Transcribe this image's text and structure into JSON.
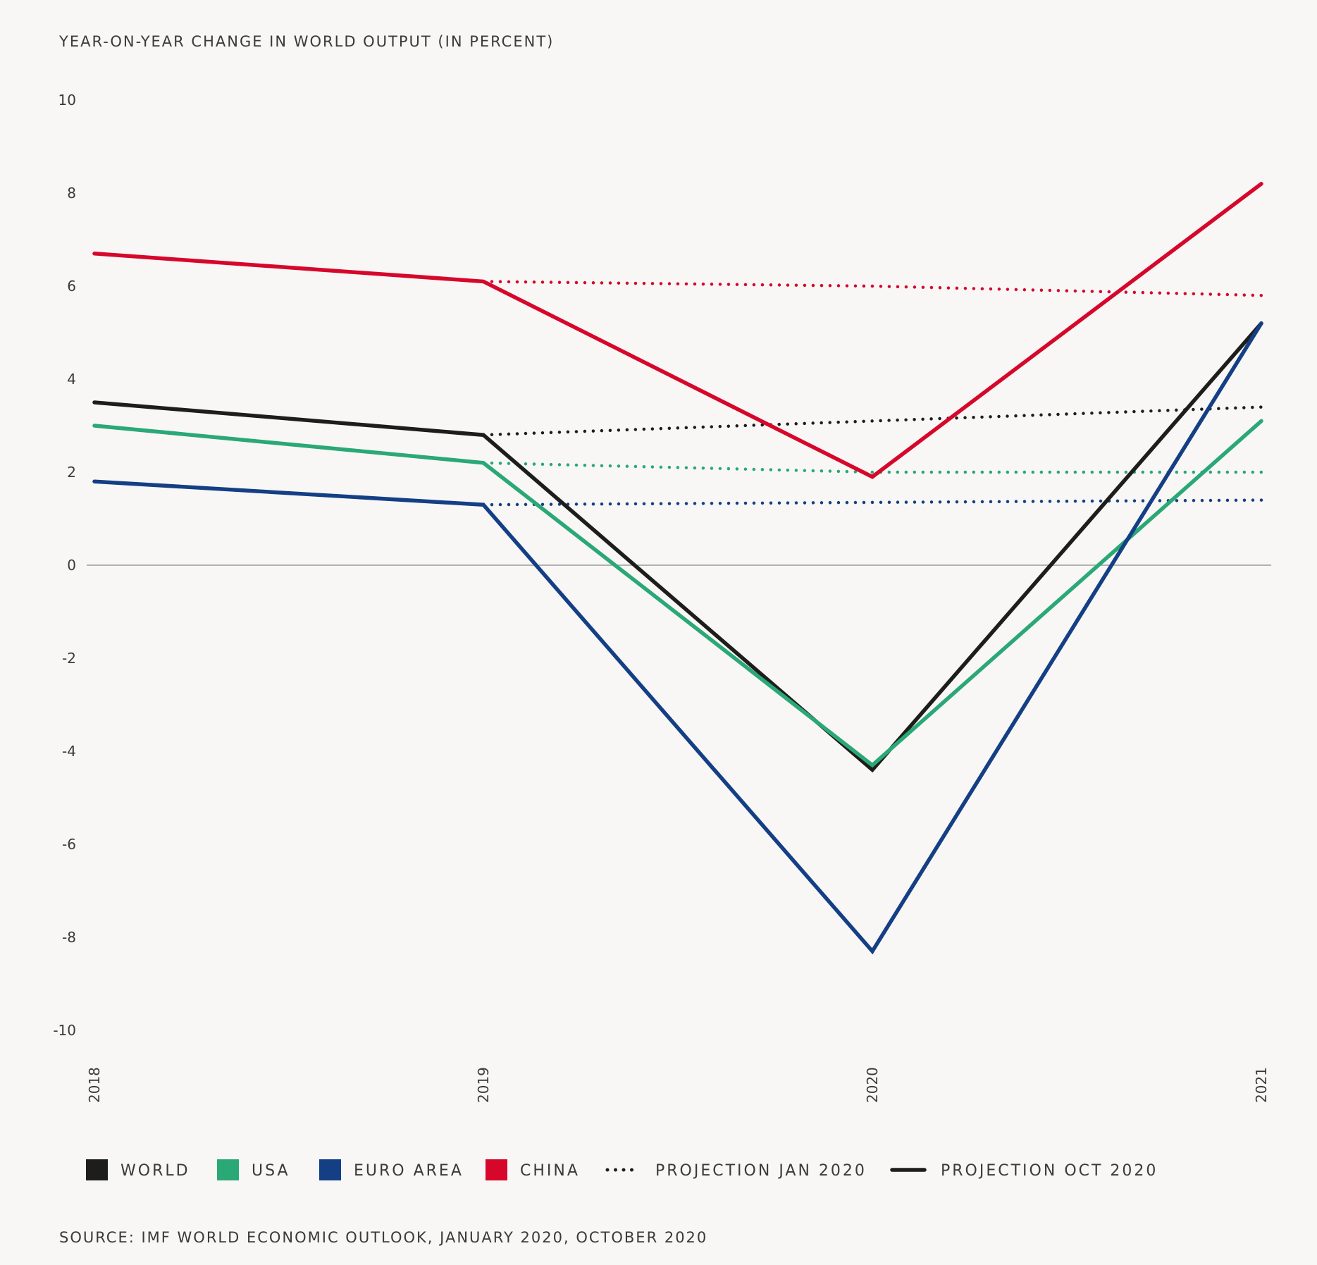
{
  "chart_data": {
    "type": "line",
    "title": "YEAR-ON-YEAR CHANGE IN WORLD OUTPUT (IN PERCENT)",
    "xlabel": "",
    "ylabel": "",
    "x": [
      "2018",
      "2019",
      "2020",
      "2021"
    ],
    "ylim": [
      -10,
      10
    ],
    "yticks": [
      "10",
      "8",
      "6",
      "4",
      "2",
      "0",
      "-2",
      "-4",
      "-6",
      "-8",
      "-10"
    ],
    "grid": false,
    "zero_line": true,
    "legend_position": "bottom",
    "series": [
      {
        "name": "WORLD",
        "style": "solid",
        "color": "#1d1d1b",
        "values": [
          3.5,
          2.8,
          -4.4,
          5.2
        ]
      },
      {
        "name": "USA",
        "style": "solid",
        "color": "#2aa876",
        "values": [
          3.0,
          2.2,
          -4.3,
          3.1
        ]
      },
      {
        "name": "EURO AREA",
        "style": "solid",
        "color": "#143f85",
        "values": [
          1.8,
          1.3,
          -8.3,
          5.2
        ]
      },
      {
        "name": "CHINA",
        "style": "solid",
        "color": "#d6072b",
        "values": [
          6.7,
          6.1,
          1.9,
          8.2
        ]
      },
      {
        "name": "WORLD",
        "style": "dotted",
        "color": "#1d1d1b",
        "values": [
          null,
          2.8,
          3.1,
          3.4
        ]
      },
      {
        "name": "USA",
        "style": "dotted",
        "color": "#2aa876",
        "values": [
          null,
          2.2,
          2.0,
          2.0
        ]
      },
      {
        "name": "EURO AREA",
        "style": "dotted",
        "color": "#143f85",
        "values": [
          null,
          1.3,
          1.35,
          1.4
        ]
      },
      {
        "name": "CHINA",
        "style": "dotted",
        "color": "#d6072b",
        "values": [
          null,
          6.1,
          6.0,
          5.8
        ]
      }
    ],
    "legend": [
      {
        "label": "WORLD",
        "kind": "swatch",
        "color": "#1d1d1b"
      },
      {
        "label": "USA",
        "kind": "swatch",
        "color": "#2aa876"
      },
      {
        "label": "EURO AREA",
        "kind": "swatch",
        "color": "#143f85"
      },
      {
        "label": "CHINA",
        "kind": "swatch",
        "color": "#d6072b"
      },
      {
        "label": "PROJECTION JAN 2020",
        "kind": "dotted",
        "color": "#1d1d1b"
      },
      {
        "label": "PROJECTION OCT 2020",
        "kind": "solid",
        "color": "#1d1d1b"
      }
    ],
    "source": "SOURCE: IMF WORLD ECONOMIC OUTLOOK, JANUARY 2020, OCTOBER 2020"
  }
}
